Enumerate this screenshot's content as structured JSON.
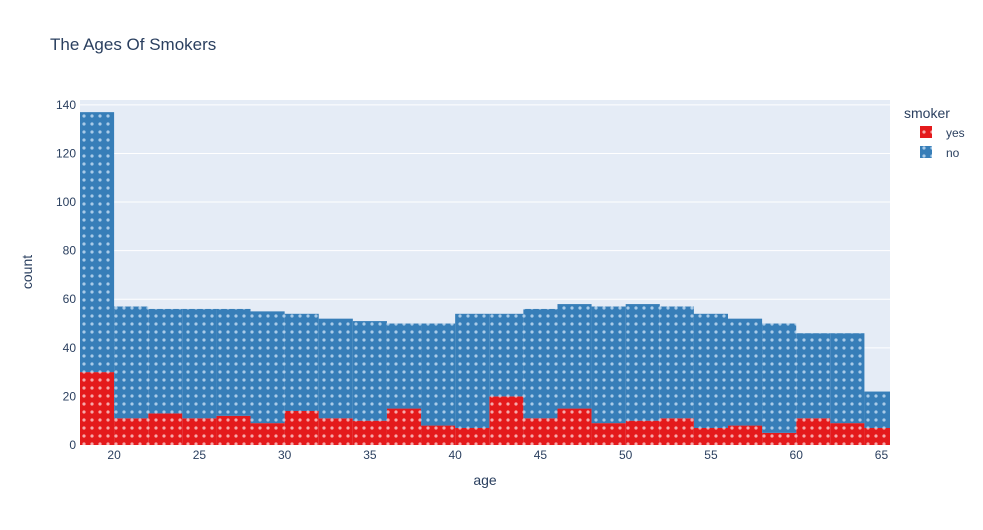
{
  "chart_data": {
    "type": "bar",
    "title": "The Ages Of Smokers",
    "xlabel": "age",
    "ylabel": "count",
    "barmode": "stack",
    "xlim": [
      18,
      65.5
    ],
    "ylim": [
      0,
      142
    ],
    "x_ticks": [
      20,
      25,
      30,
      35,
      40,
      45,
      50,
      55,
      60,
      65
    ],
    "y_ticks": [
      0,
      20,
      40,
      60,
      80,
      100,
      120,
      140
    ],
    "bin_width": 2,
    "bins": [
      [
        18,
        20
      ],
      [
        20,
        22
      ],
      [
        22,
        24
      ],
      [
        24,
        26
      ],
      [
        26,
        28
      ],
      [
        28,
        30
      ],
      [
        30,
        32
      ],
      [
        32,
        34
      ],
      [
        34,
        36
      ],
      [
        36,
        38
      ],
      [
        38,
        40
      ],
      [
        40,
        42
      ],
      [
        42,
        44
      ],
      [
        44,
        46
      ],
      [
        46,
        48
      ],
      [
        48,
        50
      ],
      [
        50,
        52
      ],
      [
        52,
        54
      ],
      [
        54,
        56
      ],
      [
        56,
        58
      ],
      [
        58,
        60
      ],
      [
        60,
        62
      ],
      [
        62,
        64
      ],
      [
        64,
        66
      ]
    ],
    "series": [
      {
        "name": "yes",
        "color": "#e41a1c",
        "values": [
          30,
          11,
          13,
          11,
          12,
          9,
          14,
          11,
          10,
          15,
          8,
          7,
          20,
          11,
          15,
          9,
          10,
          11,
          7,
          8,
          5,
          11,
          9,
          7
        ]
      },
      {
        "name": "no",
        "color": "#377eb8",
        "values": [
          107,
          46,
          43,
          45,
          44,
          46,
          40,
          41,
          41,
          35,
          42,
          47,
          34,
          45,
          43,
          48,
          48,
          46,
          47,
          44,
          45,
          35,
          37,
          15
        ]
      }
    ],
    "legend": {
      "title": "smoker",
      "position": "top-right",
      "items": [
        "yes",
        "no"
      ]
    },
    "grid": true,
    "plot_background": "#e5ecf6",
    "pattern": "dots"
  }
}
